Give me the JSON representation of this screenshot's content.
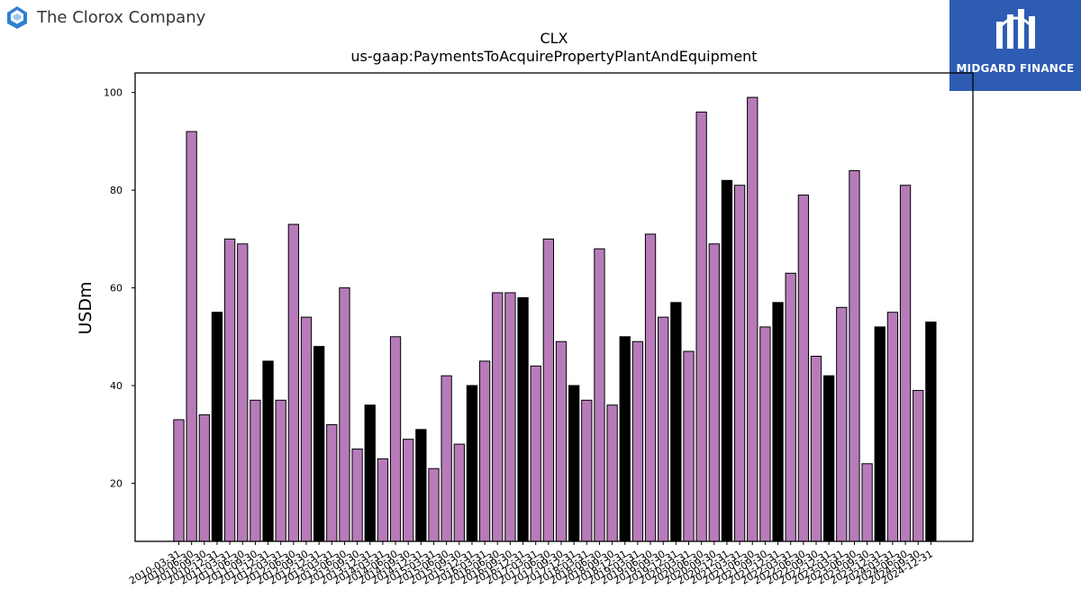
{
  "header": {
    "company_name": "The Clorox Company",
    "brand_name": "MIDGARD FINANCE",
    "logo_icon": "clorox-logo-icon",
    "brand_icon": "midgard-logo-icon"
  },
  "colors": {
    "bar_quarterly": "#b77bba",
    "bar_fiscal_year_end": "#000000",
    "brand_background": "#2e5cb2",
    "logo_blue": "#2f7fd3"
  },
  "chart_data": {
    "type": "bar",
    "title": "CLX",
    "subtitle": "us-gaap:PaymentsToAcquirePropertyPlantAndEquipment",
    "xlabel": "",
    "ylabel": "USDm",
    "ylim": [
      8.1,
      104
    ],
    "yticks": [
      20,
      40,
      60,
      80,
      100
    ],
    "grid": false,
    "legend": "none",
    "categories": [
      "2010-03-31",
      "2010-06-30",
      "2010-09-30",
      "2010-12-31",
      "2011-03-31",
      "2011-06-30",
      "2011-09-30",
      "2011-12-31",
      "2012-03-31",
      "2012-06-30",
      "2012-09-30",
      "2012-12-31",
      "2013-03-31",
      "2013-06-30",
      "2013-09-30",
      "2013-12-31",
      "2014-03-31",
      "2014-06-30",
      "2014-09-30",
      "2014-12-31",
      "2015-03-31",
      "2015-06-30",
      "2015-09-30",
      "2015-12-31",
      "2016-03-31",
      "2016-06-30",
      "2016-09-30",
      "2016-12-31",
      "2017-03-31",
      "2017-06-30",
      "2017-09-30",
      "2017-12-31",
      "2018-03-31",
      "2018-06-30",
      "2018-09-30",
      "2018-12-31",
      "2019-03-31",
      "2019-06-30",
      "2019-09-30",
      "2019-12-31",
      "2020-03-31",
      "2020-06-30",
      "2020-09-30",
      "2020-12-31",
      "2021-03-31",
      "2021-06-30",
      "2021-09-30",
      "2021-12-31",
      "2022-03-31",
      "2022-06-30",
      "2022-09-30",
      "2022-12-31",
      "2023-03-31",
      "2023-06-30",
      "2023-09-30",
      "2023-12-31",
      "2024-03-31",
      "2024-06-30",
      "2024-09-30",
      "2024-12-31"
    ],
    "values": [
      33,
      92,
      34,
      55,
      70,
      69,
      37,
      45,
      37,
      73,
      54,
      48,
      32,
      60,
      27,
      36,
      25,
      50,
      29,
      31,
      23,
      42,
      28,
      40,
      45,
      59,
      59,
      58,
      44,
      70,
      49,
      40,
      37,
      68,
      36,
      50,
      49,
      71,
      54,
      57,
      47,
      96,
      69,
      82,
      81,
      99,
      52,
      57,
      63,
      79,
      46,
      42,
      56,
      84,
      24,
      52,
      55,
      81,
      39,
      53
    ],
    "highlight": [
      0,
      0,
      0,
      1,
      0,
      0,
      0,
      1,
      0,
      0,
      0,
      1,
      0,
      0,
      0,
      1,
      0,
      0,
      0,
      1,
      0,
      0,
      0,
      1,
      0,
      0,
      0,
      1,
      0,
      0,
      0,
      1,
      0,
      0,
      0,
      1,
      0,
      0,
      0,
      1,
      0,
      0,
      0,
      1,
      0,
      0,
      0,
      1,
      0,
      0,
      0,
      1,
      0,
      0,
      0,
      1,
      0,
      0,
      0,
      1
    ]
  }
}
